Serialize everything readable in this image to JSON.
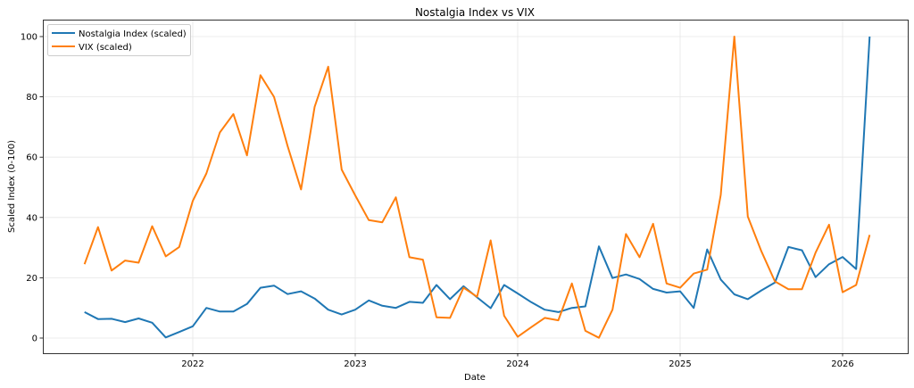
{
  "chart_data": {
    "type": "line",
    "title": "Nostalgia Index vs VIX",
    "xlabel": "Date",
    "ylabel": "Scaled Index (0-100)",
    "ylim": [
      -5,
      105
    ],
    "yticks": [
      "0",
      "20",
      "40",
      "60",
      "80",
      "100"
    ],
    "xticks": [
      "2022",
      "2023",
      "2024",
      "2025",
      "2026"
    ],
    "grid": true,
    "legend_position": "top-left",
    "x": [
      "2021-05",
      "2021-06",
      "2021-07",
      "2021-08",
      "2021-09",
      "2021-10",
      "2021-11",
      "2021-12",
      "2022-01",
      "2022-02",
      "2022-03",
      "2022-04",
      "2022-05",
      "2022-06",
      "2022-07",
      "2022-08",
      "2022-09",
      "2022-10",
      "2022-11",
      "2022-12",
      "2023-01",
      "2023-02",
      "2023-03",
      "2023-04",
      "2023-05",
      "2023-06",
      "2023-07",
      "2023-08",
      "2023-09",
      "2023-10",
      "2023-11",
      "2023-12",
      "2024-01",
      "2024-02",
      "2024-03",
      "2024-04",
      "2024-05",
      "2024-06",
      "2024-07",
      "2024-08",
      "2024-09",
      "2024-10",
      "2024-11",
      "2024-12",
      "2025-01",
      "2025-02",
      "2025-03",
      "2025-04",
      "2025-05",
      "2025-06",
      "2025-07",
      "2025-08",
      "2025-09",
      "2025-10",
      "2025-11",
      "2025-12",
      "2026-01",
      "2026-02",
      "2026-03"
    ],
    "series": [
      {
        "name": "Nostalgia Index (scaled)",
        "color": "#1f77b4",
        "values": [
          8.6,
          6.3,
          6.4,
          5.3,
          6.5,
          5.1,
          0.2,
          2.0,
          3.9,
          10.0,
          8.8,
          8.8,
          11.3,
          16.7,
          17.4,
          14.6,
          15.5,
          13.1,
          9.4,
          7.8,
          9.4,
          12.5,
          10.7,
          10.0,
          12.0,
          11.7,
          17.6,
          12.9,
          17.2,
          13.5,
          9.9,
          17.6,
          14.8,
          11.9,
          9.4,
          8.6,
          10.0,
          10.5,
          30.4,
          19.9,
          21.1,
          19.6,
          16.3,
          15.1,
          15.5,
          10.0,
          29.4,
          19.4,
          14.5,
          12.9,
          15.8,
          18.4,
          30.2,
          29.1,
          20.2,
          24.5,
          26.9,
          22.9,
          100
        ]
      },
      {
        "name": "VIX (scaled)",
        "color": "#ff7f0e",
        "values": [
          24.5,
          36.8,
          22.4,
          25.7,
          25.0,
          37.1,
          27.1,
          30.2,
          45.5,
          54.6,
          68.2,
          74.3,
          60.6,
          87.2,
          80.0,
          63.7,
          49.3,
          76.7,
          90.0,
          55.9,
          47.3,
          39.1,
          38.4,
          46.7,
          26.8,
          26.0,
          6.9,
          6.7,
          16.7,
          13.7,
          32.4,
          7.4,
          0.4,
          3.6,
          6.7,
          5.9,
          18.1,
          2.4,
          0.1,
          9.4,
          34.5,
          26.8,
          37.9,
          18.1,
          16.7,
          21.4,
          22.7,
          47.5,
          100,
          40.3,
          28.8,
          18.8,
          16.2,
          16.2,
          28.3,
          37.6,
          15.2,
          17.6,
          34.2
        ]
      }
    ]
  }
}
